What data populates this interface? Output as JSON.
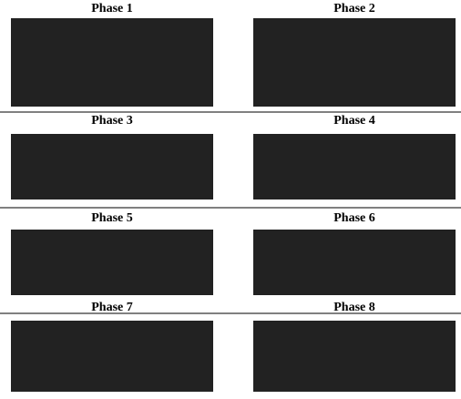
{
  "panels": [
    {
      "title": "Phase 1"
    },
    {
      "title": "Phase 2"
    },
    {
      "title": "Phase 3"
    },
    {
      "title": "Phase 4"
    },
    {
      "title": "Phase 5"
    },
    {
      "title": "Phase 6"
    },
    {
      "title": "Phase 7"
    },
    {
      "title": "Phase 8"
    }
  ]
}
